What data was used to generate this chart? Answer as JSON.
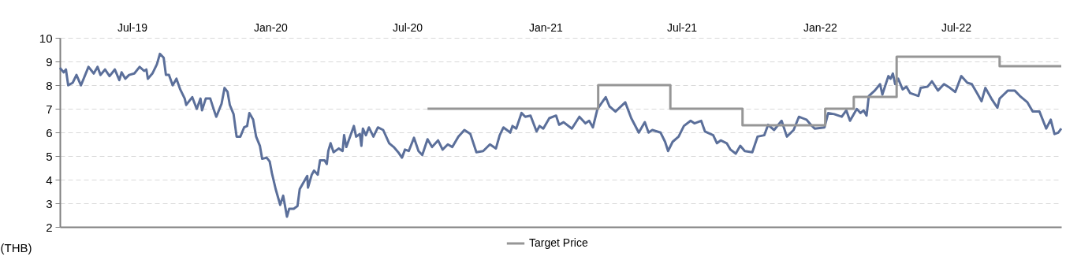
{
  "chart_data": {
    "type": "line",
    "ylabel": "(THB)",
    "xlim": [
      "2019-03-27",
      "2022-11-18"
    ],
    "xticks": [
      {
        "value": "2019-07-01",
        "label": "Jul-19"
      },
      {
        "value": "2020-01-01",
        "label": "Jan-20"
      },
      {
        "value": "2020-07-01",
        "label": "Jul-20"
      },
      {
        "value": "2021-01-01",
        "label": "Jan-21"
      },
      {
        "value": "2021-07-01",
        "label": "Jul-21"
      },
      {
        "value": "2022-01-01",
        "label": "Jan-22"
      },
      {
        "value": "2022-07-01",
        "label": "Jul-22"
      }
    ],
    "ylim": [
      2,
      10
    ],
    "yticks": [
      2,
      3,
      4,
      5,
      6,
      7,
      8,
      9,
      10
    ],
    "grid": "y",
    "legend": "bottom",
    "line_style": "solid",
    "series": [
      {
        "color": "#5b6f9a",
        "x": [
          "2019-03-27",
          "2019-04-01",
          "2019-04-04",
          "2019-04-07",
          "2019-04-13",
          "2019-04-18",
          "2019-04-24",
          "2019-05-04",
          "2019-05-11",
          "2019-05-16",
          "2019-05-20",
          "2019-05-26",
          "2019-06-01",
          "2019-06-08",
          "2019-06-14",
          "2019-06-17",
          "2019-06-22",
          "2019-06-27",
          "2019-07-04",
          "2019-07-11",
          "2019-07-17",
          "2019-07-20",
          "2019-07-22",
          "2019-07-28",
          "2019-08-03",
          "2019-08-07",
          "2019-08-12",
          "2019-08-15",
          "2019-08-19",
          "2019-08-24",
          "2019-08-29",
          "2019-09-03",
          "2019-09-09",
          "2019-09-11",
          "2019-09-19",
          "2019-09-25",
          "2019-09-30",
          "2019-10-02",
          "2019-10-07",
          "2019-10-13",
          "2019-10-18",
          "2019-10-21",
          "2019-10-28",
          "2019-11-01",
          "2019-11-05",
          "2019-11-08",
          "2019-11-13",
          "2019-11-17",
          "2019-11-22",
          "2019-11-27",
          "2019-12-01",
          "2019-12-04",
          "2019-12-09",
          "2019-12-13",
          "2019-12-18",
          "2019-12-21",
          "2019-12-27",
          "2019-12-31",
          "2020-01-03",
          "2020-01-08",
          "2020-01-14",
          "2020-01-18",
          "2020-01-23",
          "2020-01-26",
          "2020-02-01",
          "2020-02-06",
          "2020-02-09",
          "2020-02-19",
          "2020-02-20",
          "2020-02-25",
          "2020-02-28",
          "2020-03-04",
          "2020-03-07",
          "2020-03-13",
          "2020-03-16",
          "2020-03-18",
          "2020-03-21",
          "2020-03-25",
          "2020-04-01",
          "2020-04-06",
          "2020-04-08",
          "2020-04-11",
          "2020-04-21",
          "2020-04-24",
          "2020-04-29",
          "2020-05-01",
          "2020-05-03",
          "2020-05-07",
          "2020-05-11",
          "2020-05-17",
          "2020-05-23",
          "2020-05-30",
          "2020-06-07",
          "2020-06-13",
          "2020-06-19",
          "2020-06-24",
          "2020-06-28",
          "2020-07-03",
          "2020-07-10",
          "2020-07-16",
          "2020-07-21",
          "2020-07-28",
          "2020-08-03",
          "2020-08-11",
          "2020-08-17",
          "2020-08-24",
          "2020-08-30",
          "2020-09-07",
          "2020-09-15",
          "2020-09-23",
          "2020-10-01",
          "2020-10-10",
          "2020-10-19",
          "2020-10-27",
          "2020-11-01",
          "2020-11-06",
          "2020-11-15",
          "2020-11-18",
          "2020-11-23",
          "2020-11-30",
          "2020-12-05",
          "2020-12-12",
          "2020-12-20",
          "2020-12-24",
          "2020-12-29",
          "2021-01-06",
          "2021-01-15",
          "2021-01-19",
          "2021-01-25",
          "2021-02-05",
          "2021-02-15",
          "2021-02-23",
          "2021-02-28",
          "2021-03-05",
          "2021-03-11",
          "2021-03-22",
          "2021-03-27",
          "2021-04-04",
          "2021-04-17",
          "2021-04-25",
          "2021-05-05",
          "2021-05-13",
          "2021-05-18",
          "2021-05-23",
          "2021-06-03",
          "2021-06-09",
          "2021-06-13",
          "2021-06-19",
          "2021-06-27",
          "2021-07-04",
          "2021-07-13",
          "2021-07-18",
          "2021-07-27",
          "2021-08-01",
          "2021-08-12",
          "2021-08-17",
          "2021-08-22",
          "2021-08-30",
          "2021-09-04",
          "2021-09-11",
          "2021-09-17",
          "2021-09-23",
          "2021-10-03",
          "2021-10-10",
          "2021-10-19",
          "2021-10-24",
          "2021-11-01",
          "2021-11-11",
          "2021-11-18",
          "2021-11-27",
          "2021-12-04",
          "2021-12-14",
          "2021-12-20",
          "2021-12-25",
          "2022-01-07",
          "2022-01-12",
          "2022-01-20",
          "2022-01-30",
          "2022-02-05",
          "2022-02-10",
          "2022-02-19",
          "2022-02-24",
          "2022-02-28",
          "2022-03-04",
          "2022-03-07",
          "2022-03-15",
          "2022-03-22",
          "2022-03-25",
          "2022-04-02",
          "2022-04-05",
          "2022-04-08",
          "2022-04-11",
          "2022-04-15",
          "2022-04-21",
          "2022-04-26",
          "2022-05-01",
          "2022-05-12",
          "2022-05-15",
          "2022-05-24",
          "2022-05-30",
          "2022-06-07",
          "2022-06-15",
          "2022-06-23",
          "2022-06-30",
          "2022-07-08",
          "2022-07-16",
          "2022-07-22",
          "2022-07-29",
          "2022-08-04",
          "2022-08-09",
          "2022-08-17",
          "2022-08-25",
          "2022-08-28",
          "2022-09-08",
          "2022-09-17",
          "2022-09-24",
          "2022-10-04",
          "2022-10-11",
          "2022-10-20",
          "2022-10-29",
          "2022-11-04",
          "2022-11-09",
          "2022-11-14",
          "2022-11-18"
        ],
        "values": [
          8.73,
          8.54,
          8.66,
          7.99,
          8.1,
          8.43,
          7.99,
          8.77,
          8.49,
          8.77,
          8.43,
          8.66,
          8.38,
          8.66,
          8.21,
          8.54,
          8.27,
          8.43,
          8.49,
          8.77,
          8.6,
          8.66,
          8.27,
          8.49,
          8.88,
          9.32,
          9.16,
          8.43,
          8.43,
          7.99,
          8.27,
          7.82,
          7.43,
          7.16,
          7.49,
          6.99,
          7.43,
          6.93,
          7.43,
          7.43,
          6.93,
          6.66,
          7.21,
          7.88,
          7.71,
          7.16,
          6.77,
          5.82,
          5.82,
          6.21,
          6.27,
          6.82,
          6.54,
          5.82,
          5.43,
          4.88,
          4.93,
          4.77,
          4.27,
          3.6,
          2.93,
          3.32,
          2.43,
          2.77,
          2.77,
          2.88,
          3.6,
          4.16,
          3.66,
          4.21,
          4.38,
          4.21,
          4.82,
          4.82,
          4.66,
          5.21,
          5.54,
          5.16,
          5.32,
          5.21,
          5.88,
          5.38,
          6.27,
          5.82,
          5.93,
          5.43,
          6.16,
          5.88,
          6.21,
          5.82,
          6.21,
          6.1,
          5.54,
          5.38,
          5.16,
          4.93,
          5.27,
          5.21,
          5.77,
          5.21,
          5.04,
          5.71,
          5.38,
          5.66,
          5.27,
          5.49,
          5.38,
          5.82,
          6.1,
          5.93,
          5.16,
          5.21,
          5.49,
          5.32,
          5.88,
          6.21,
          5.99,
          6.27,
          6.16,
          6.82,
          6.66,
          6.71,
          6.04,
          6.27,
          6.16,
          6.6,
          6.71,
          6.32,
          6.43,
          6.16,
          6.66,
          6.38,
          6.49,
          6.21,
          6.99,
          7.49,
          7.1,
          6.88,
          7.27,
          6.6,
          5.99,
          6.43,
          5.99,
          6.1,
          5.99,
          5.6,
          5.21,
          5.6,
          5.82,
          6.27,
          6.49,
          6.38,
          6.49,
          6.04,
          5.88,
          5.54,
          5.66,
          5.54,
          5.27,
          5.1,
          5.43,
          5.21,
          5.16,
          5.82,
          5.88,
          6.32,
          6.1,
          6.49,
          5.82,
          6.1,
          6.66,
          6.54,
          6.32,
          6.16,
          6.21,
          6.82,
          6.77,
          6.66,
          6.93,
          6.49,
          6.99,
          6.82,
          6.93,
          6.71,
          7.54,
          7.77,
          8.04,
          7.6,
          8.38,
          8.27,
          8.49,
          8.04,
          8.27,
          7.82,
          7.93,
          7.66,
          7.54,
          7.88,
          7.93,
          8.16,
          7.77,
          8.04,
          7.88,
          7.71,
          8.38,
          8.1,
          8.04,
          7.66,
          7.32,
          7.88,
          7.43,
          7.04,
          7.43,
          7.77,
          7.77,
          7.54,
          7.27,
          6.88,
          6.88,
          6.16,
          6.54,
          5.93,
          5.99,
          6.16
        ]
      },
      {
        "type": "step",
        "name": "Target Price",
        "color": "#969696",
        "x": [
          "2020-07-28",
          "2021-03-12",
          "2021-06-16",
          "2021-09-20",
          "2022-01-08",
          "2022-02-15",
          "2022-04-13",
          "2022-08-28",
          "2022-11-18"
        ],
        "values": [
          7,
          8,
          7,
          6.3,
          7,
          7.5,
          9.2,
          8.8,
          8.8
        ]
      }
    ]
  }
}
